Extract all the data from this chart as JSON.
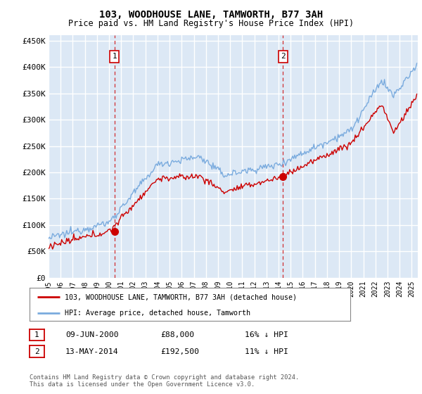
{
  "title": "103, WOODHOUSE LANE, TAMWORTH, B77 3AH",
  "subtitle": "Price paid vs. HM Land Registry's House Price Index (HPI)",
  "ylabel_ticks": [
    "£0",
    "£50K",
    "£100K",
    "£150K",
    "£200K",
    "£250K",
    "£300K",
    "£350K",
    "£400K",
    "£450K"
  ],
  "ytick_vals": [
    0,
    50000,
    100000,
    150000,
    200000,
    250000,
    300000,
    350000,
    400000,
    450000
  ],
  "ylim": [
    0,
    460000
  ],
  "xlim_start": 1995.0,
  "xlim_end": 2025.5,
  "background_color": "#dce8f5",
  "grid_color": "#ffffff",
  "red_line_color": "#cc0000",
  "blue_line_color": "#7aabde",
  "dashed_color": "#cc0000",
  "marker1_x": 2000.44,
  "marker1_y": 88000,
  "marker2_x": 2014.36,
  "marker2_y": 192500,
  "legend_line1": "103, WOODHOUSE LANE, TAMWORTH, B77 3AH (detached house)",
  "legend_line2": "HPI: Average price, detached house, Tamworth",
  "footnote": "Contains HM Land Registry data © Crown copyright and database right 2024.\nThis data is licensed under the Open Government Licence v3.0.",
  "xtick_years": [
    1995,
    1996,
    1997,
    1998,
    1999,
    2000,
    2001,
    2002,
    2003,
    2004,
    2005,
    2006,
    2007,
    2008,
    2009,
    2010,
    2011,
    2012,
    2013,
    2014,
    2015,
    2016,
    2017,
    2018,
    2019,
    2020,
    2021,
    2022,
    2023,
    2024,
    2025
  ]
}
